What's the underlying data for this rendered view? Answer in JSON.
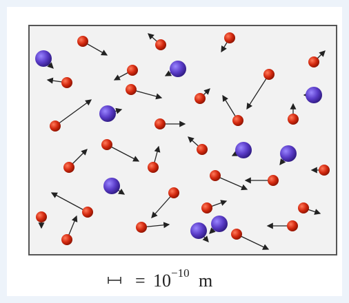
{
  "caption": {
    "equals": "=",
    "base": "10",
    "exponent": "−10",
    "unit": "m"
  }
}
